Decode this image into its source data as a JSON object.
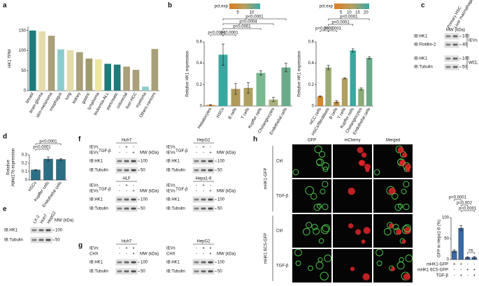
{
  "panel_labels": [
    "a",
    "b",
    "c",
    "d",
    "e",
    "f",
    "g",
    "h"
  ],
  "chart_data": [
    {
      "type": "bar",
      "ylabel": "HK1 TPM",
      "categories": [
        "breast",
        "brain-glioma",
        "skin-melanoma",
        "esophagus",
        "lung",
        "kidney",
        "gastric",
        "lymphoma",
        "leukemia-ALL",
        "pancreatic",
        "colorectal",
        "liver-HCC",
        "myeloma",
        "Others cancers"
      ],
      "values": [
        150,
        148,
        137,
        103,
        101,
        96,
        80,
        78,
        67,
        65,
        60,
        52,
        10,
        104
      ],
      "colors": [
        "#1e7b7b",
        "#e3dcaa",
        "#a9a07a",
        "#8ccccc",
        "#e3dcaa",
        "#a9a07a",
        "#a09a6a",
        "#efe6a0",
        "#1e7b7b",
        "#1e7b7b",
        "#a9a07a",
        "#a9a07a",
        "#8ccccc",
        "#a9a07a"
      ],
      "label_color": "#3a9a9a",
      "ylim": [
        0,
        160
      ],
      "yticks": [
        0,
        50,
        100,
        150
      ]
    },
    {
      "type": "bar",
      "ylabel": "Relative HK1 expression",
      "categories": [
        "Hepatocytes",
        "HSCs",
        "B cells",
        "T cells",
        "Kupffer cells",
        "Cholangiocytes",
        "Endothelial cells"
      ],
      "values": [
        0.01,
        0.48,
        0.16,
        0.17,
        0.31,
        0.06,
        0.36
      ],
      "errors": [
        0.003,
        0.1,
        0.05,
        0.05,
        0.02,
        0.02,
        0.04
      ],
      "colors": [
        "#d4862e",
        "#3aa8a0",
        "#b09a5a",
        "#b0a060",
        "#7ab890",
        "#a8b07a",
        "#6aaa88"
      ],
      "ylim": [
        0,
        0.6
      ],
      "yticks": [
        0,
        0.2,
        0.4,
        0.6
      ],
      "legend": {
        "title": "pct.exp",
        "lim": [
          2,
          13
        ],
        "ticks": [
          5,
          10
        ],
        "colors": [
          "#e07b20",
          "#b8a060",
          "#3aa8a8"
        ]
      },
      "annotations": [
        "p<0.0001",
        "p=0.0004",
        "p<0.0001",
        "p<0.0001",
        "p<0.0001"
      ]
    },
    {
      "type": "bar",
      "ylabel": "Relative HK1 expression",
      "categories": [
        "HCC cells",
        "HSCs/fibroblasts",
        "B cells",
        "T cells",
        "Kupffer cells",
        "Cholangiocytes",
        "Endothelial cells"
      ],
      "values": [
        0.09,
        0.36,
        0.04,
        0.26,
        0.52,
        0.16,
        0.45
      ],
      "errors": [
        0.005,
        0.02,
        0.01,
        0.005,
        0.015,
        0.01,
        0.01
      ],
      "colors": [
        "#d4862e",
        "#9aaa70",
        "#c09040",
        "#b0a060",
        "#3aa8a0",
        "#8aaa78",
        "#6aaa88"
      ],
      "ylim": [
        0,
        0.6
      ],
      "yticks": [
        0,
        0.2,
        0.4,
        0.6
      ],
      "legend": {
        "title": "pct.exp",
        "lim": [
          1,
          22
        ],
        "ticks": [
          5,
          10,
          15,
          20
        ],
        "colors": [
          "#e07b20",
          "#b8a060",
          "#3aa8a8"
        ]
      },
      "annotations": [
        "p<0.0001",
        "p<0.0001",
        "p<0.0001",
        "p<0.0001"
      ]
    },
    {
      "type": "bar",
      "ylabel": [
        "Relative",
        "Abhd17b expression"
      ],
      "categories": [
        "HSCs",
        "Kupffer cells",
        "Endothelial cells"
      ],
      "values": [
        0.12,
        0.25,
        0.245
      ],
      "errors": [
        0.005,
        0.025,
        0.01
      ],
      "color": "#2b6f86",
      "ylim": [
        0,
        0.3
      ],
      "yticks": [
        0,
        0.1,
        0.2,
        0.3
      ],
      "annotations": [
        "p<0.0001",
        "p<0.0001"
      ]
    },
    {
      "type": "bar",
      "ylabel": "GFP in Hepa1-6 (%)",
      "values": [
        20,
        75,
        5,
        5
      ],
      "errors": [
        3,
        6,
        1.5,
        2
      ],
      "color": "#3a6aa8",
      "ylim": [
        0,
        100
      ],
      "yticks": [
        0,
        50,
        100
      ],
      "annotations": [
        "p<0.0001",
        "p=0.002",
        "p<0.0001",
        "ns"
      ],
      "conditions": [
        {
          "name": "mHK1-GFP",
          "signs": [
            "+",
            "+",
            "-",
            "-"
          ]
        },
        {
          "name": "mHK1 6CS-GFP",
          "signs": [
            "-",
            "-",
            "+",
            "+"
          ]
        },
        {
          "name": "TGF-β",
          "signs": [
            "-",
            "+",
            "-",
            "+"
          ]
        }
      ]
    }
  ],
  "blots": {
    "c": {
      "lanes": [
        "Primary HSC",
        "Liver macrophage"
      ],
      "mw_label": "MW (kDa)",
      "groups": [
        {
          "name": "IEVs",
          "rows": [
            {
              "label": "IB:HK1",
              "mw": 100
            },
            {
              "label": "IB:Flotillin-2",
              "mw": 40
            }
          ]
        },
        {
          "name": "WCL",
          "rows": [
            {
              "label": "IB:HK1",
              "mw": 100
            },
            {
              "label": "IB:Tubulin",
              "mw": 50
            }
          ]
        }
      ]
    },
    "e": {
      "lanes": [
        "LX-2",
        "Huh7",
        "HepG2"
      ],
      "mw_label": "MW (kDa)",
      "rows": [
        {
          "label": "IB:HK1",
          "mw": 100
        },
        {
          "label": "IB:Tubulin",
          "mw": 50
        }
      ]
    },
    "f": [
      {
        "title": "Huh7",
        "conditions": [
          {
            "name": "IEVs",
            "signs": [
              "-",
              "+",
              "-"
            ]
          },
          {
            "name": "IEVs",
            "sup": "TGF-β",
            "signs": [
              "-",
              "-",
              "+"
            ]
          }
        ],
        "mw_label": "MW (kDa)",
        "rows": [
          {
            "label": "IB:HK1",
            "mw": 100
          },
          {
            "label": "IB:Tubulin",
            "mw": 50
          }
        ]
      },
      {
        "title": "HepG2",
        "conditions": [
          {
            "name": "IEVs",
            "signs": [
              "-",
              "+",
              "-"
            ]
          },
          {
            "name": "IEVs",
            "sup": "TGF-β",
            "signs": [
              "-",
              "-",
              "+"
            ]
          }
        ],
        "mw_label": "MW (kDa)",
        "rows": [
          {
            "label": "IB:HK1",
            "mw": 100
          },
          {
            "label": "IB:Tubulin",
            "mw": 50
          }
        ]
      },
      {
        "title": "HLF",
        "conditions": [
          {
            "name": "IEVs",
            "signs": [
              "-",
              "+",
              "-"
            ]
          },
          {
            "name": "IEVs",
            "sup": "TGF-β",
            "signs": [
              "-",
              "-",
              "+"
            ]
          }
        ],
        "mw_label": "MW (kDa)",
        "rows": [
          {
            "label": "IB:HK1",
            "mw": 100
          },
          {
            "label": "IB:Tubulin",
            "mw": 50
          }
        ]
      },
      {
        "title": "Hepa1-6",
        "conditions": [
          {
            "name": "IEVs",
            "signs": [
              "-",
              "+",
              "-"
            ]
          },
          {
            "name": "IEVs",
            "sup": "TGF-β",
            "signs": [
              "-",
              "-",
              "+"
            ]
          }
        ],
        "mw_label": "MW (kDa)",
        "rows": [
          {
            "label": "IB:HK1",
            "mw": 100
          },
          {
            "label": "IB:Tubulin",
            "mw": 50
          }
        ]
      }
    ],
    "g": [
      {
        "title": "Huh7",
        "conditions": [
          {
            "name": "IEVs",
            "signs": [
              "-",
              "+",
              "+"
            ]
          },
          {
            "name": "CHX",
            "signs": [
              "-",
              "-",
              "+"
            ]
          }
        ],
        "mw_label": "MW (kDa)",
        "rows": [
          {
            "label": "IB:HK1",
            "mw": 100
          },
          {
            "label": "IB:Tubulin",
            "mw": 50
          }
        ]
      },
      {
        "title": "HepG2",
        "conditions": [
          {
            "name": "IEVs",
            "signs": [
              "-",
              "+",
              "+"
            ]
          },
          {
            "name": "CHX",
            "signs": [
              "-",
              "-",
              "+"
            ]
          }
        ],
        "mw_label": "MW (kDa)",
        "rows": [
          {
            "label": "IB:HK1",
            "mw": 100
          },
          {
            "label": "IB:Tubulin",
            "mw": 50
          }
        ]
      }
    ]
  },
  "microscopy": {
    "columns": [
      "GFP",
      "mCherry",
      "Merged"
    ],
    "groups": [
      {
        "name": "mHK1-GFP",
        "rows": [
          "Ctrl",
          "TGF-β"
        ]
      },
      {
        "name": "mHK1 6CS-GFP",
        "rows": [
          "Ctrl",
          "TGF-β"
        ]
      }
    ]
  }
}
